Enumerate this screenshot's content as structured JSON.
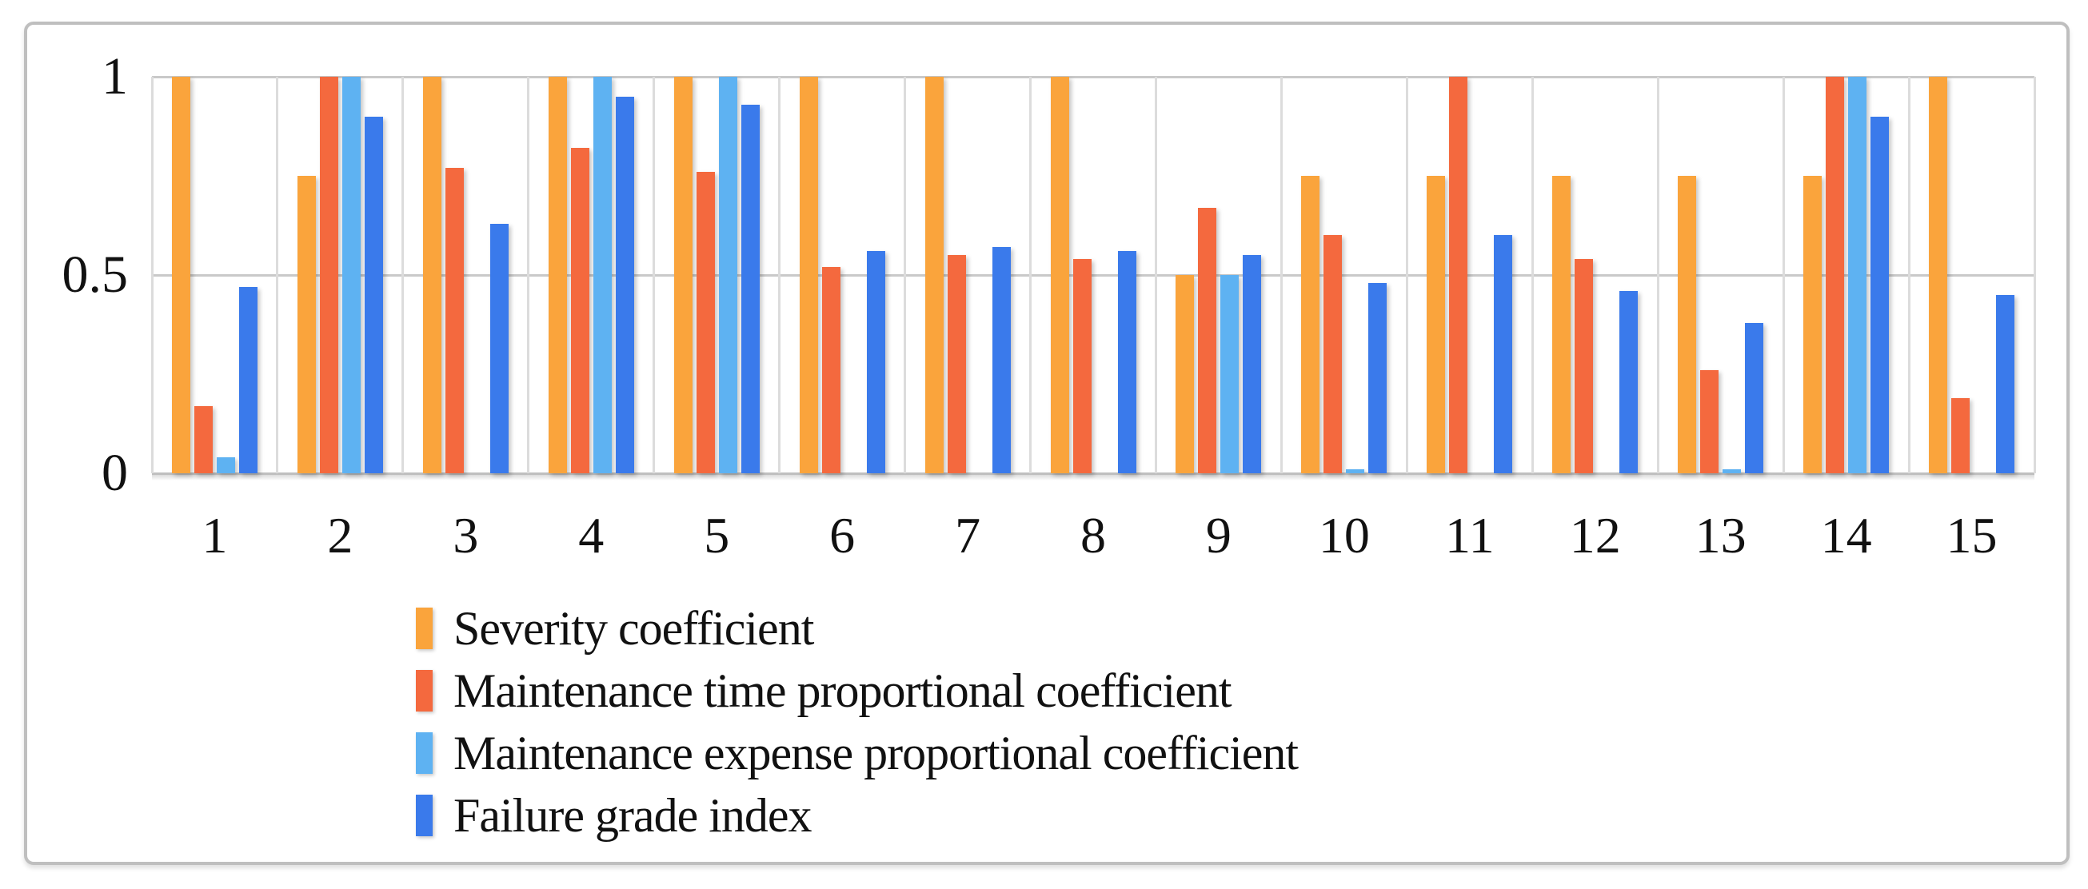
{
  "frame": {
    "background": "#ffffff",
    "border_color": "#bfbfbf"
  },
  "chart_data": {
    "type": "bar",
    "title": "",
    "xlabel": "",
    "ylabel": "",
    "ylim": [
      0,
      1
    ],
    "grid": true,
    "legend_position": "bottom-left",
    "yticks": [
      {
        "label": "1",
        "value": 1
      },
      {
        "label": "0.5",
        "value": 0.5
      },
      {
        "label": "0",
        "value": 0
      }
    ],
    "categories": [
      "1",
      "2",
      "3",
      "4",
      "5",
      "6",
      "7",
      "8",
      "9",
      "10",
      "11",
      "12",
      "13",
      "14",
      "15"
    ],
    "series": [
      {
        "name": "Severity coefficient",
        "color": "#faa43c",
        "values": [
          1.0,
          0.75,
          1.0,
          1.0,
          1.0,
          1.0,
          1.0,
          1.0,
          0.5,
          0.75,
          0.75,
          0.75,
          0.75,
          0.75,
          1.0
        ]
      },
      {
        "name": "Maintenance time proportional coefficient",
        "color": "#f4693e",
        "values": [
          0.17,
          1.0,
          0.77,
          0.82,
          0.76,
          0.52,
          0.55,
          0.54,
          0.67,
          0.6,
          1.0,
          0.54,
          0.26,
          1.0,
          0.19
        ]
      },
      {
        "name": "Maintenance expense proportional coefficient",
        "color": "#5eb2f2",
        "values": [
          0.04,
          1.0,
          0.0,
          1.0,
          1.0,
          0.0,
          0.0,
          0.0,
          0.5,
          0.01,
          0.0,
          0.0,
          0.01,
          1.0,
          0.0
        ]
      },
      {
        "name": "Failure grade index",
        "color": "#3a7aeb",
        "values": [
          0.47,
          0.9,
          0.63,
          0.95,
          0.93,
          0.56,
          0.57,
          0.56,
          0.55,
          0.48,
          0.6,
          0.46,
          0.38,
          0.9,
          0.45
        ]
      }
    ]
  }
}
